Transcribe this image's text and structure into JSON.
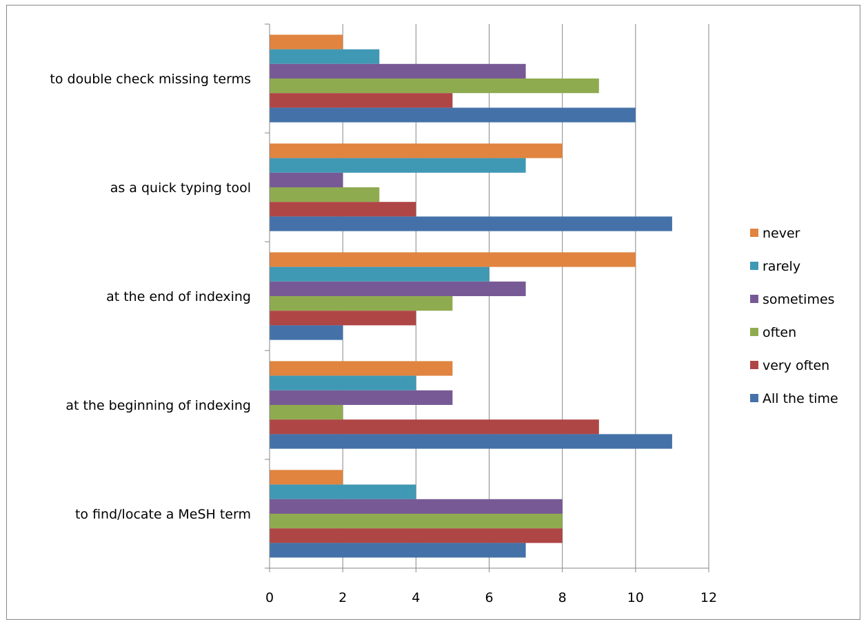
{
  "chart_data": {
    "type": "bar",
    "orientation": "horizontal",
    "title": "",
    "xlabel": "",
    "ylabel": "",
    "xlim": [
      0,
      12
    ],
    "x_ticks": [
      "0",
      "2",
      "4",
      "6",
      "8",
      "10",
      "12"
    ],
    "grid": "vertical gridlines on",
    "legend_position": "right",
    "categories": [
      "to double check missing terms",
      "as a quick typing tool",
      "at the end of indexing",
      "at the beginning of indexing",
      "to find/locate a MeSH term"
    ],
    "series": [
      {
        "name": "never",
        "color": "#E0843F",
        "values": [
          2,
          8,
          10,
          5,
          2
        ]
      },
      {
        "name": "rarely",
        "color": "#4099B4",
        "values": [
          3,
          7,
          6,
          4,
          4
        ]
      },
      {
        "name": "sometimes",
        "color": "#775A95",
        "values": [
          7,
          2,
          7,
          5,
          8
        ]
      },
      {
        "name": "often",
        "color": "#8FAB4F",
        "values": [
          9,
          3,
          5,
          2,
          8
        ]
      },
      {
        "name": "very often",
        "color": "#AE4645",
        "values": [
          5,
          4,
          4,
          9,
          8
        ]
      },
      {
        "name": "All the time",
        "color": "#4471A8",
        "values": [
          10,
          11,
          2,
          11,
          7
        ]
      }
    ]
  }
}
